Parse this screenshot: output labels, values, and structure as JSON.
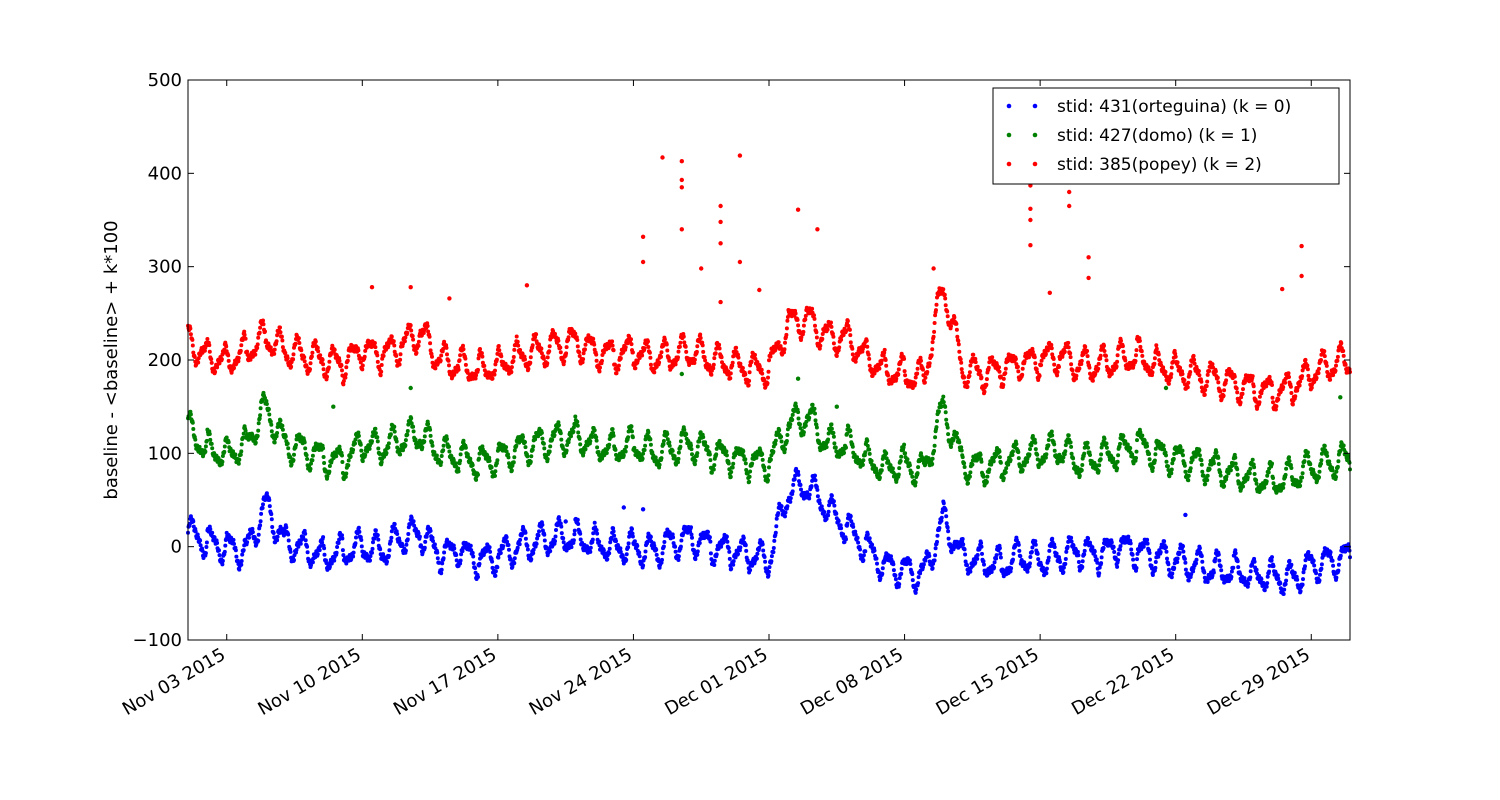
{
  "chart_data": {
    "type": "scatter",
    "title": "",
    "xlabel": "",
    "ylabel": "baseline - <baseline> + k*100",
    "x_range": [
      "2015-11-01",
      "2015-12-31"
    ],
    "ylim": [
      -100,
      500
    ],
    "y_ticks": [
      -100,
      0,
      100,
      200,
      300,
      400,
      500
    ],
    "y_tick_labels": [
      "−100",
      "0",
      "100",
      "200",
      "300",
      "400",
      "500"
    ],
    "x_ticks": [
      "2015-11-03",
      "2015-11-10",
      "2015-11-17",
      "2015-11-24",
      "2015-12-01",
      "2015-12-08",
      "2015-12-15",
      "2015-12-22",
      "2015-12-29"
    ],
    "x_tick_labels": [
      "Nov 03 2015",
      "Nov 10 2015",
      "Nov 17 2015",
      "Nov 24 2015",
      "Dec 01 2015",
      "Dec 08 2015",
      "Dec 15 2015",
      "Dec 22 2015",
      "Dec 29 2015"
    ],
    "grid": false,
    "legend_position": "top-right",
    "series": [
      {
        "name": "stid: 431(orteguina) (k = 0)",
        "color": "#0000ff",
        "x": [
          "2015-11-01",
          "2015-11-02",
          "2015-11-03",
          "2015-11-04",
          "2015-11-05",
          "2015-11-06",
          "2015-11-07",
          "2015-11-08",
          "2015-11-09",
          "2015-11-10",
          "2015-11-11",
          "2015-11-12",
          "2015-11-13",
          "2015-11-14",
          "2015-11-15",
          "2015-11-16",
          "2015-11-17",
          "2015-11-18",
          "2015-11-19",
          "2015-11-20",
          "2015-11-21",
          "2015-11-22",
          "2015-11-23",
          "2015-11-24",
          "2015-11-25",
          "2015-11-26",
          "2015-11-27",
          "2015-11-28",
          "2015-11-29",
          "2015-11-30",
          "2015-12-01",
          "2015-12-02",
          "2015-12-03",
          "2015-12-04",
          "2015-12-05",
          "2015-12-06",
          "2015-12-07",
          "2015-12-08",
          "2015-12-09",
          "2015-12-10",
          "2015-12-11",
          "2015-12-12",
          "2015-12-13",
          "2015-12-14",
          "2015-12-15",
          "2015-12-16",
          "2015-12-17",
          "2015-12-18",
          "2015-12-19",
          "2015-12-20",
          "2015-12-21",
          "2015-12-22",
          "2015-12-23",
          "2015-12-24",
          "2015-12-25",
          "2015-12-26",
          "2015-12-27",
          "2015-12-28",
          "2015-12-29",
          "2015-12-30",
          "2015-12-31"
        ],
        "y": [
          15,
          5,
          0,
          -5,
          45,
          5,
          0,
          -10,
          -5,
          0,
          -5,
          10,
          15,
          -10,
          -5,
          -15,
          -10,
          0,
          5,
          10,
          10,
          5,
          0,
          0,
          -5,
          5,
          10,
          0,
          -5,
          -10,
          -15,
          60,
          65,
          40,
          20,
          0,
          -20,
          -25,
          -30,
          30,
          -10,
          -15,
          -20,
          -10,
          -15,
          -10,
          -5,
          -10,
          0,
          -5,
          -10,
          -15,
          -20,
          -25,
          -25,
          -30,
          -30,
          -35,
          -20,
          -15,
          -10
        ],
        "outliers": [
          {
            "x": "2015-11-20",
            "y": 27
          },
          {
            "x": "2015-11-23",
            "y": 42
          },
          {
            "x": "2015-11-24",
            "y": 40
          },
          {
            "x": "2015-12-22",
            "y": 34
          }
        ]
      },
      {
        "name": "stid: 427(domo) (k = 1)",
        "color": "#008000",
        "x": [
          "2015-11-01",
          "2015-11-02",
          "2015-11-03",
          "2015-11-04",
          "2015-11-05",
          "2015-11-06",
          "2015-11-07",
          "2015-11-08",
          "2015-11-09",
          "2015-11-10",
          "2015-11-11",
          "2015-11-12",
          "2015-11-13",
          "2015-11-14",
          "2015-11-15",
          "2015-11-16",
          "2015-11-17",
          "2015-11-18",
          "2015-11-19",
          "2015-11-20",
          "2015-11-21",
          "2015-11-22",
          "2015-11-23",
          "2015-11-24",
          "2015-11-25",
          "2015-11-26",
          "2015-11-27",
          "2015-11-28",
          "2015-11-29",
          "2015-11-30",
          "2015-12-01",
          "2015-12-02",
          "2015-12-03",
          "2015-12-04",
          "2015-12-05",
          "2015-12-06",
          "2015-12-07",
          "2015-12-08",
          "2015-12-09",
          "2015-12-10",
          "2015-12-11",
          "2015-12-12",
          "2015-12-13",
          "2015-12-14",
          "2015-12-15",
          "2015-12-16",
          "2015-12-17",
          "2015-12-18",
          "2015-12-19",
          "2015-12-20",
          "2015-12-21",
          "2015-12-22",
          "2015-12-23",
          "2015-12-24",
          "2015-12-25",
          "2015-12-26",
          "2015-12-27",
          "2015-12-28",
          "2015-12-29",
          "2015-12-30",
          "2015-12-31"
        ],
        "y": [
          125,
          105,
          100,
          110,
          150,
          110,
          105,
          95,
          90,
          110,
          105,
          115,
          120,
          100,
          95,
          90,
          95,
          105,
          110,
          115,
          120,
          110,
          105,
          110,
          100,
          105,
          110,
          100,
          95,
          90,
          90,
          130,
          140,
          110,
          110,
          95,
          85,
          90,
          80,
          150,
          90,
          85,
          90,
          95,
          100,
          105,
          90,
          95,
          100,
          110,
          100,
          95,
          90,
          85,
          80,
          75,
          70,
          75,
          85,
          90,
          95
        ],
        "outliers": [
          {
            "x": "2015-11-08",
            "y": 150
          },
          {
            "x": "2015-11-12",
            "y": 170
          },
          {
            "x": "2015-11-26",
            "y": 185
          },
          {
            "x": "2015-12-02",
            "y": 180
          },
          {
            "x": "2015-12-04",
            "y": 150
          },
          {
            "x": "2015-12-21",
            "y": 170
          },
          {
            "x": "2015-12-30",
            "y": 160
          }
        ]
      },
      {
        "name": "stid: 385(popey) (k = 2)",
        "color": "#ff0000",
        "x": [
          "2015-11-01",
          "2015-11-02",
          "2015-11-03",
          "2015-11-04",
          "2015-11-05",
          "2015-11-06",
          "2015-11-07",
          "2015-11-08",
          "2015-11-09",
          "2015-11-10",
          "2015-11-11",
          "2015-11-12",
          "2015-11-13",
          "2015-11-14",
          "2015-11-15",
          "2015-11-16",
          "2015-11-17",
          "2015-11-18",
          "2015-11-19",
          "2015-11-20",
          "2015-11-21",
          "2015-11-22",
          "2015-11-23",
          "2015-11-24",
          "2015-11-25",
          "2015-11-26",
          "2015-11-27",
          "2015-11-28",
          "2015-11-29",
          "2015-11-30",
          "2015-12-01",
          "2015-12-02",
          "2015-12-03",
          "2015-12-04",
          "2015-12-05",
          "2015-12-06",
          "2015-12-07",
          "2015-12-08",
          "2015-12-09",
          "2015-12-10",
          "2015-12-11",
          "2015-12-12",
          "2015-12-13",
          "2015-12-14",
          "2015-12-15",
          "2015-12-16",
          "2015-12-17",
          "2015-12-18",
          "2015-12-19",
          "2015-12-20",
          "2015-12-21",
          "2015-12-22",
          "2015-12-23",
          "2015-12-24",
          "2015-12-25",
          "2015-12-26",
          "2015-12-27",
          "2015-12-28",
          "2015-12-29",
          "2015-12-30",
          "2015-12-31"
        ],
        "y": [
          220,
          205,
          200,
          210,
          225,
          210,
          205,
          200,
          195,
          210,
          205,
          215,
          230,
          200,
          195,
          190,
          195,
          205,
          210,
          215,
          220,
          210,
          205,
          210,
          200,
          205,
          210,
          200,
          195,
          190,
          190,
          240,
          245,
          225,
          225,
          205,
          190,
          185,
          180,
          280,
          190,
          185,
          190,
          195,
          200,
          205,
          195,
          195,
          200,
          205,
          195,
          190,
          185,
          180,
          175,
          170,
          165,
          170,
          185,
          195,
          200
        ],
        "outliers": [
          {
            "x": "2015-11-10",
            "y": 278
          },
          {
            "x": "2015-11-12",
            "y": 278
          },
          {
            "x": "2015-11-14",
            "y": 266
          },
          {
            "x": "2015-11-18",
            "y": 280
          },
          {
            "x": "2015-11-24",
            "y": 332
          },
          {
            "x": "2015-11-24",
            "y": 305
          },
          {
            "x": "2015-11-25",
            "y": 417
          },
          {
            "x": "2015-11-26",
            "y": 413
          },
          {
            "x": "2015-11-26",
            "y": 393
          },
          {
            "x": "2015-11-26",
            "y": 385
          },
          {
            "x": "2015-11-26",
            "y": 340
          },
          {
            "x": "2015-11-27",
            "y": 298
          },
          {
            "x": "2015-11-28",
            "y": 365
          },
          {
            "x": "2015-11-28",
            "y": 348
          },
          {
            "x": "2015-11-28",
            "y": 325
          },
          {
            "x": "2015-11-28",
            "y": 262
          },
          {
            "x": "2015-11-29",
            "y": 419
          },
          {
            "x": "2015-11-29",
            "y": 305
          },
          {
            "x": "2015-11-30",
            "y": 275
          },
          {
            "x": "2015-12-02",
            "y": 361
          },
          {
            "x": "2015-12-03",
            "y": 340
          },
          {
            "x": "2015-12-09",
            "y": 298
          },
          {
            "x": "2015-12-14",
            "y": 387
          },
          {
            "x": "2015-12-14",
            "y": 362
          },
          {
            "x": "2015-12-14",
            "y": 350
          },
          {
            "x": "2015-12-14",
            "y": 323
          },
          {
            "x": "2015-12-15",
            "y": 272
          },
          {
            "x": "2015-12-16",
            "y": 380
          },
          {
            "x": "2015-12-16",
            "y": 365
          },
          {
            "x": "2015-12-17",
            "y": 310
          },
          {
            "x": "2015-12-17",
            "y": 288
          },
          {
            "x": "2015-12-27",
            "y": 276
          },
          {
            "x": "2015-12-28",
            "y": 322
          },
          {
            "x": "2015-12-28",
            "y": 290
          }
        ]
      }
    ]
  }
}
